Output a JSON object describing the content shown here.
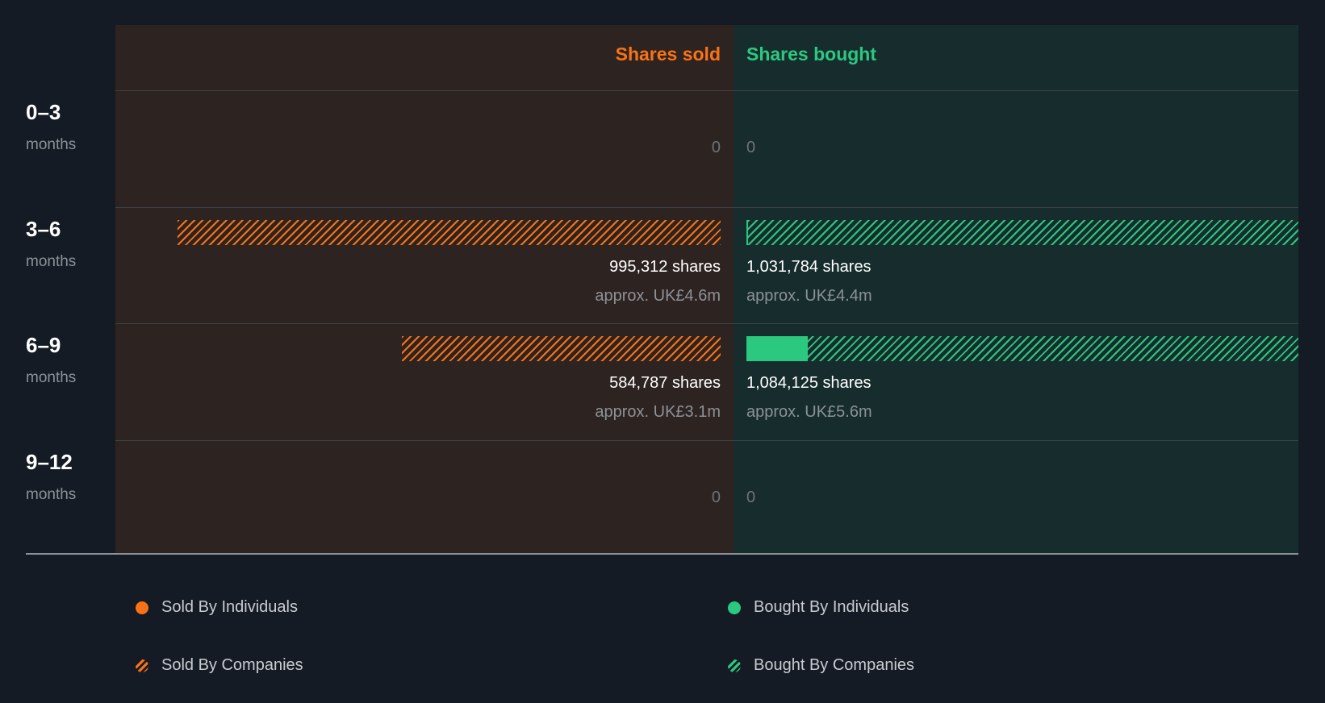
{
  "colors": {
    "sold": "#f97316",
    "bought": "#2bc97f"
  },
  "chart_data": {
    "type": "bar",
    "orientation": "horizontal-diverging",
    "headers": {
      "sold": "Shares sold",
      "bought": "Shares bought"
    },
    "rows": [
      {
        "label": "0–3",
        "sub": "months",
        "sold": {
          "shares": 0,
          "individuals": 0,
          "text": "0",
          "approx": ""
        },
        "bought": {
          "shares": 0,
          "individuals": 0,
          "text": "0",
          "approx": ""
        }
      },
      {
        "label": "3–6",
        "sub": "months",
        "sold": {
          "shares": 995312,
          "individuals": 0,
          "text": "995,312 shares",
          "approx": "approx. UK£4.6m"
        },
        "bought": {
          "shares": 1031784,
          "individuals": 0,
          "text": "1,031,784 shares",
          "approx": "approx. UK£4.4m"
        }
      },
      {
        "label": "6–9",
        "sub": "months",
        "sold": {
          "shares": 584787,
          "individuals": 0,
          "text": "584,787 shares",
          "approx": "approx. UK£3.1m"
        },
        "bought": {
          "shares": 1084125,
          "individuals": 113000,
          "text": "1,084,125 shares",
          "approx": "approx. UK£5.6m"
        }
      },
      {
        "label": "9–12",
        "sub": "months",
        "sold": {
          "shares": 0,
          "individuals": 0,
          "text": "0",
          "approx": ""
        },
        "bought": {
          "shares": 0,
          "individuals": 0,
          "text": "0",
          "approx": ""
        }
      }
    ],
    "legend": [
      {
        "label": "Sold By Individuals",
        "icon": "solid-dot",
        "color": "#f97316"
      },
      {
        "label": "Bought By Individuals",
        "icon": "solid-dot",
        "color": "#2bc97f"
      },
      {
        "label": "Sold By Companies",
        "icon": "hatched-dot",
        "color": "#f97316"
      },
      {
        "label": "Bought By Companies",
        "icon": "hatched-dot",
        "color": "#2bc97f"
      }
    ]
  }
}
